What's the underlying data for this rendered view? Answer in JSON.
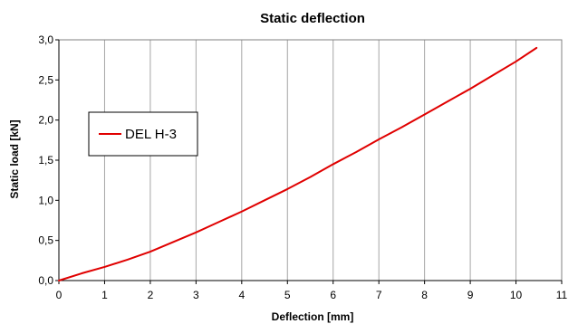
{
  "chart_data": {
    "type": "line",
    "title": "Static deflection",
    "xlabel": "Deflection [mm]",
    "ylabel": "Static load [kN]",
    "xlim": [
      0,
      11
    ],
    "ylim": [
      0,
      3.0
    ],
    "x_ticks": [
      0,
      1,
      2,
      3,
      4,
      5,
      6,
      7,
      8,
      9,
      10,
      11
    ],
    "y_ticks": [
      0.0,
      0.5,
      1.0,
      1.5,
      2.0,
      2.5,
      3.0
    ],
    "x_tick_labels": [
      "0",
      "1",
      "2",
      "3",
      "4",
      "5",
      "6",
      "7",
      "8",
      "9",
      "10",
      "11"
    ],
    "y_tick_labels": [
      "0,0",
      "0,5",
      "1,0",
      "1,5",
      "2,0",
      "2,5",
      "3,0"
    ],
    "grid": "vertical",
    "legend_position": "left",
    "series": [
      {
        "name": "DEL H-3",
        "color": "#e00000",
        "x": [
          0,
          0.5,
          1.0,
          1.5,
          2.0,
          2.5,
          3.0,
          3.5,
          4.0,
          4.5,
          5.0,
          5.5,
          6.0,
          6.5,
          7.0,
          7.5,
          8.0,
          8.5,
          9.0,
          9.5,
          10.0,
          10.45
        ],
        "y": [
          0.0,
          0.09,
          0.17,
          0.26,
          0.36,
          0.48,
          0.6,
          0.73,
          0.86,
          1.0,
          1.14,
          1.29,
          1.45,
          1.6,
          1.76,
          1.91,
          2.07,
          2.23,
          2.39,
          2.56,
          2.73,
          2.9
        ]
      }
    ]
  }
}
